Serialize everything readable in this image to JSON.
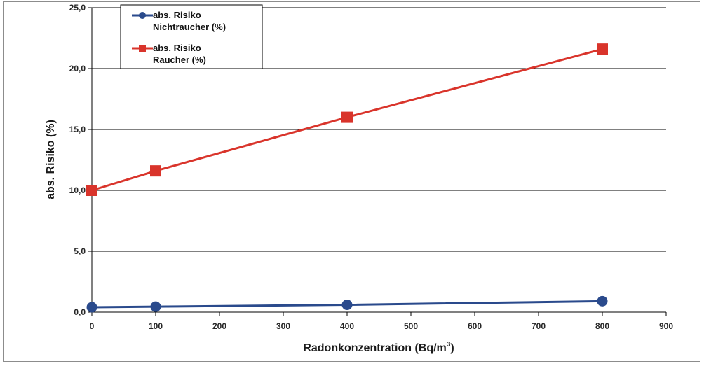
{
  "chart_data": {
    "type": "line",
    "title": "",
    "xlabel": "Radonkonzentration (Bq/m",
    "xlabel_sup": "3",
    "xlabel_end": ")",
    "ylabel": "abs. Risiko (%)",
    "xlim": [
      0,
      900
    ],
    "ylim": [
      0,
      25
    ],
    "x_ticks": [
      0,
      100,
      200,
      300,
      400,
      500,
      600,
      700,
      800,
      900
    ],
    "y_ticks": [
      0,
      5,
      10,
      15,
      20,
      25
    ],
    "y_tick_labels": [
      "0,0",
      "5,0",
      "10,0",
      "15,0",
      "20,0",
      "25,0"
    ],
    "grid": "horizontal",
    "legend_position": "top-left",
    "series": [
      {
        "name_line1": "abs. Risiko",
        "name_line2": "Nichtraucher (%)",
        "x": [
          0,
          100,
          400,
          800
        ],
        "values": [
          0.4,
          0.45,
          0.6,
          0.9
        ],
        "color": "#2a4a8c",
        "marker": "circle"
      },
      {
        "name_line1": "abs. Risiko",
        "name_line2": "Raucher (%)",
        "x": [
          0,
          100,
          400,
          800
        ],
        "values": [
          10.0,
          11.6,
          16.0,
          21.6
        ],
        "color": "#d9342b",
        "marker": "square"
      }
    ]
  }
}
